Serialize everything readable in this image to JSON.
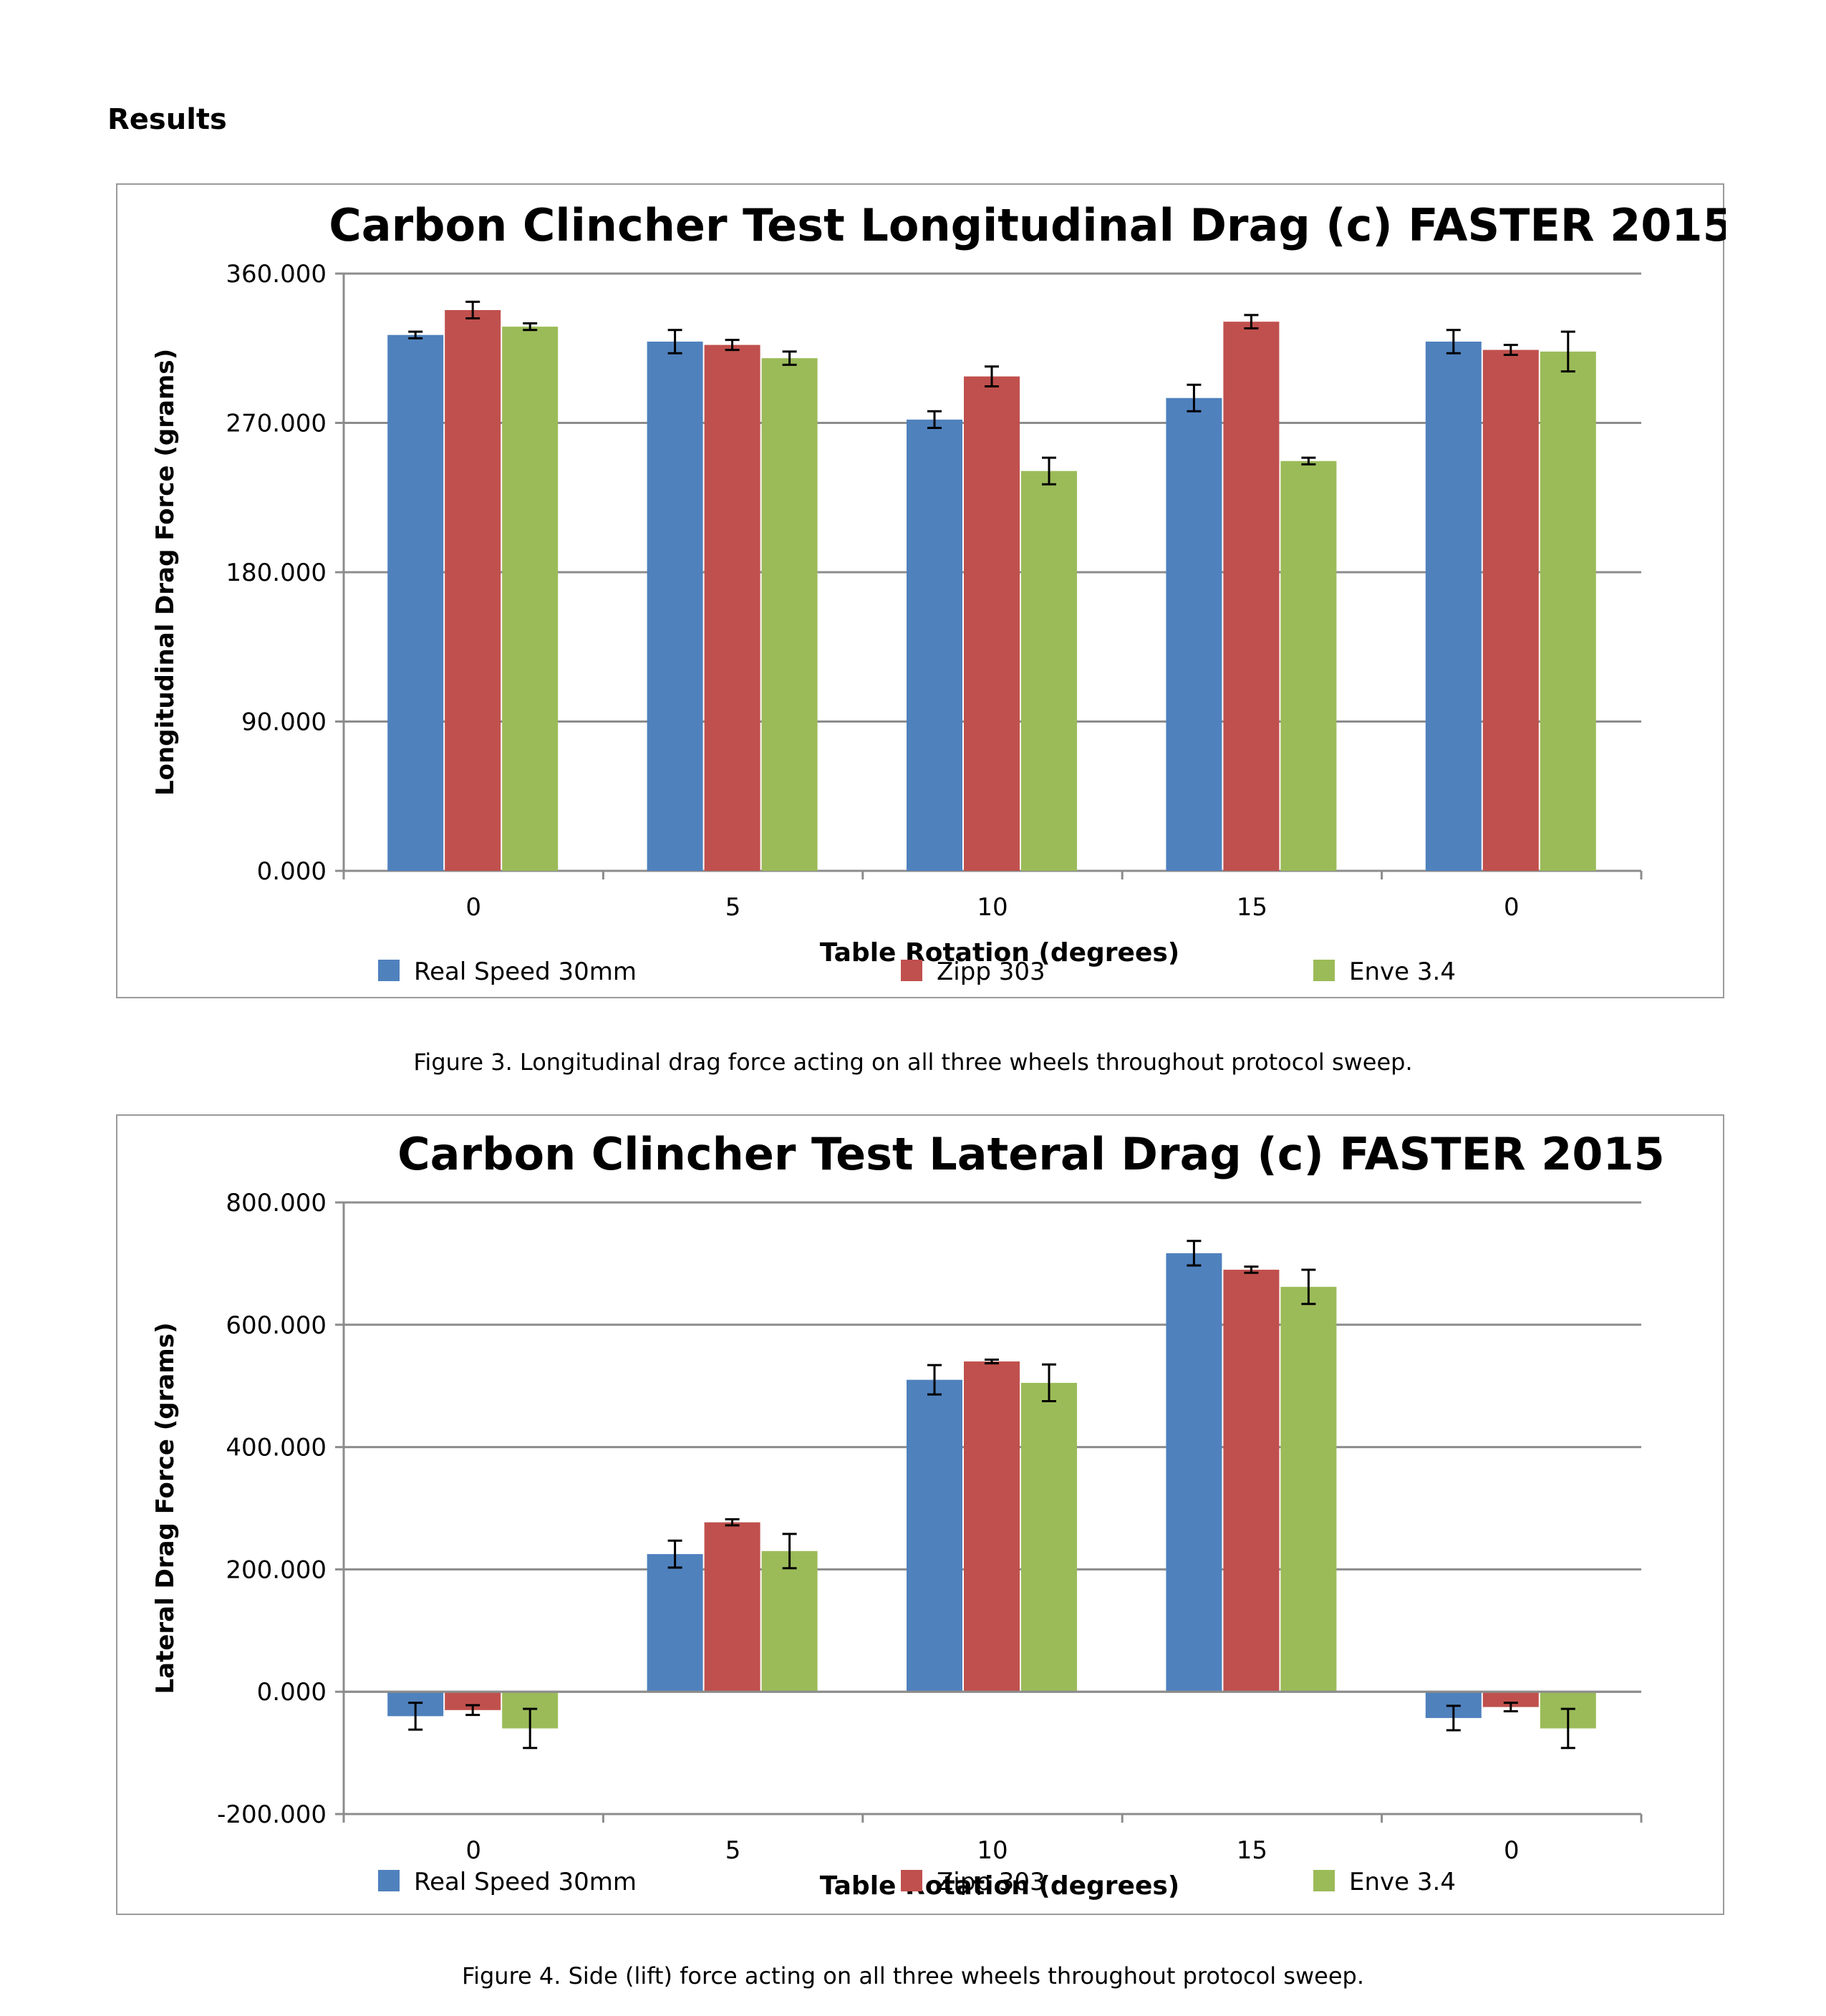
{
  "heading": "Results",
  "legend_colors": {
    "Real Speed 30mm": "#4f81bd",
    "Zipp 303": "#c0504d",
    "Enve 3.4": "#9bbb59"
  },
  "chart_data": [
    {
      "type": "bar",
      "title": "Carbon Clincher Test Longitudinal Drag (c) FASTER 2015",
      "xlabel": "Table Rotation (degrees)",
      "ylabel": "Longitudinal Drag Force (grams)",
      "categories": [
        "0",
        "5",
        "10",
        "15",
        "0"
      ],
      "ylim": [
        0,
        360
      ],
      "yticks": [
        0,
        90,
        180,
        270,
        360
      ],
      "ytick_labels": [
        "0.000",
        "90.000",
        "180.000",
        "270.000",
        "360.000"
      ],
      "grid": true,
      "legend_position": "bottom",
      "series": [
        {
          "name": "Real Speed 30mm",
          "values": [
            323,
            319,
            272,
            285,
            319
          ],
          "errors": [
            2,
            7,
            5,
            8,
            7
          ]
        },
        {
          "name": "Zipp 303",
          "values": [
            338,
            317,
            298,
            331,
            314
          ],
          "errors": [
            5,
            3,
            6,
            4,
            3
          ]
        },
        {
          "name": "Enve 3.4",
          "values": [
            328,
            309,
            241,
            247,
            313
          ],
          "errors": [
            2,
            4,
            8,
            2,
            12
          ]
        }
      ]
    },
    {
      "type": "bar",
      "title": "Carbon Clincher Test Lateral Drag (c) FASTER 2015",
      "xlabel": "Table Rotation (degrees)",
      "ylabel": "Lateral Drag Force (grams)",
      "categories": [
        "0",
        "5",
        "10",
        "15",
        "0"
      ],
      "ylim": [
        -200,
        800
      ],
      "yticks": [
        -200,
        0,
        200,
        400,
        600,
        800
      ],
      "ytick_labels": [
        "-200.000",
        "0.000",
        "200.000",
        "400.000",
        "600.000",
        "800.000"
      ],
      "grid": true,
      "legend_position": "bottom",
      "series": [
        {
          "name": "Real Speed 30mm",
          "values": [
            -40,
            225,
            510,
            717,
            -43
          ],
          "errors": [
            22,
            22,
            24,
            20,
            20
          ]
        },
        {
          "name": "Zipp 303",
          "values": [
            -30,
            277,
            540,
            690,
            -25
          ],
          "errors": [
            8,
            5,
            3,
            5,
            7
          ]
        },
        {
          "name": "Enve 3.4",
          "values": [
            -60,
            230,
            505,
            662,
            -60
          ],
          "errors": [
            32,
            28,
            30,
            28,
            32
          ]
        }
      ]
    }
  ],
  "captions": {
    "figure3": "Figure 3. Longitudinal drag force acting on all three wheels throughout protocol sweep.",
    "figure4": "Figure 4. Side (lift) force acting on all three wheels throughout protocol sweep."
  }
}
